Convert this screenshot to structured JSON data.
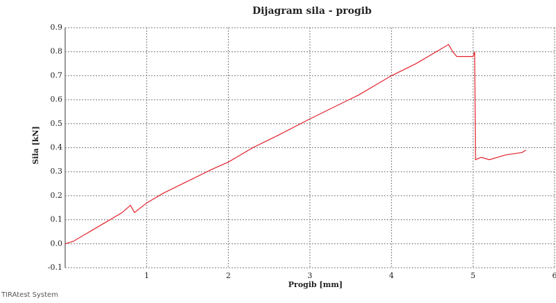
{
  "chart_data": {
    "type": "line",
    "title": "Dijagram sila - progib",
    "x_label": "Progib [mm]",
    "y_label": "Sila [kN]",
    "x": [
      0,
      0.1,
      0.3,
      0.5,
      0.7,
      0.8,
      0.85,
      1.0,
      1.2,
      1.5,
      1.8,
      2.0,
      2.3,
      2.6,
      3.0,
      3.3,
      3.6,
      4.0,
      4.3,
      4.6,
      4.7,
      4.75,
      4.8,
      5.0,
      5.02,
      5.03,
      5.1,
      5.2,
      5.4,
      5.6,
      5.65
    ],
    "series": [
      {
        "name": "Sila",
        "color": "#e3202a",
        "values": [
          0,
          0.01,
          0.05,
          0.09,
          0.13,
          0.16,
          0.13,
          0.17,
          0.21,
          0.26,
          0.31,
          0.34,
          0.4,
          0.45,
          0.52,
          0.57,
          0.62,
          0.7,
          0.75,
          0.81,
          0.83,
          0.8,
          0.78,
          0.78,
          0.8,
          0.35,
          0.36,
          0.35,
          0.37,
          0.38,
          0.39
        ]
      }
    ],
    "xlim": [
      0,
      6
    ],
    "xticks": [
      1,
      2,
      3,
      4,
      5,
      6
    ],
    "ylim": [
      -0.1,
      0.9
    ],
    "yticks": [
      {
        "value": -0.1,
        "label": "-0.1"
      },
      {
        "value": 0,
        "label": "0.0"
      },
      0.1,
      0.2,
      0.3,
      0.4,
      0.5,
      0.6,
      0.7,
      0.8,
      0.9
    ],
    "grid": true
  },
  "footer": "TIRAtest System"
}
